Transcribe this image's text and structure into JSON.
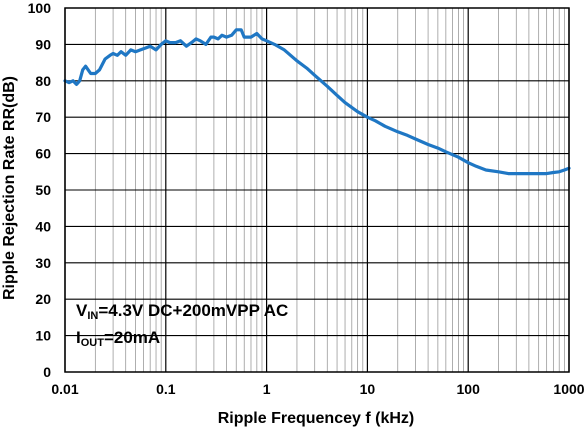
{
  "chart_data": {
    "type": "line",
    "title": "",
    "xlabel": "Ripple Frequencey f (kHz)",
    "ylabel": "Ripple Rejection Rate RR(dB)",
    "xscale": "log",
    "xlim": [
      0.01,
      1000
    ],
    "ylim": [
      0,
      100
    ],
    "x_ticks": [
      "0.01",
      "0.1",
      "1",
      "10",
      "100",
      "1000"
    ],
    "y_ticks": [
      "0",
      "10",
      "20",
      "30",
      "40",
      "50",
      "60",
      "70",
      "80",
      "90",
      "100"
    ],
    "grid": true,
    "line_color": "#1f77c4",
    "series": [
      {
        "x": [
          0.01,
          0.011,
          0.012,
          0.013,
          0.014,
          0.015,
          0.016,
          0.017,
          0.018,
          0.02,
          0.022,
          0.025,
          0.028,
          0.03,
          0.033,
          0.036,
          0.04,
          0.045,
          0.05,
          0.056,
          0.063,
          0.07,
          0.08,
          0.09,
          0.1,
          0.11,
          0.125,
          0.14,
          0.16,
          0.18,
          0.2,
          0.22,
          0.25,
          0.28,
          0.3,
          0.33,
          0.36,
          0.4,
          0.45,
          0.5,
          0.56,
          0.6,
          0.63,
          0.7,
          0.8,
          0.9,
          1.0,
          1.2,
          1.5,
          2,
          2.5,
          3,
          4,
          5,
          6,
          8,
          10,
          12,
          15,
          20,
          25,
          30,
          40,
          50,
          60,
          80,
          100,
          120,
          150,
          200,
          250,
          300,
          400,
          500,
          600,
          700,
          800,
          900,
          1000
        ],
        "y": [
          80.0,
          79.5,
          80.0,
          79.0,
          80.0,
          83.0,
          84.0,
          83.0,
          82.0,
          82.0,
          83.0,
          86.0,
          87.0,
          87.5,
          87.0,
          88.0,
          87.0,
          88.5,
          88.0,
          88.5,
          89.0,
          89.5,
          88.5,
          90.0,
          91.0,
          90.5,
          90.5,
          91.0,
          89.5,
          90.5,
          91.5,
          91.0,
          90.0,
          92.0,
          92.0,
          91.5,
          92.5,
          92.0,
          92.5,
          94.0,
          94.0,
          92.0,
          92.0,
          92.0,
          93.0,
          91.5,
          91.0,
          90.0,
          88.5,
          85.5,
          83.5,
          81.5,
          78.5,
          76.0,
          74.0,
          71.5,
          70.0,
          69.0,
          67.5,
          66.0,
          65.0,
          64.0,
          62.5,
          61.5,
          60.5,
          59.0,
          57.5,
          56.5,
          55.5,
          55.0,
          54.5,
          54.5,
          54.5,
          54.5,
          54.5,
          54.8,
          55.0,
          55.5,
          56.0
        ]
      }
    ]
  },
  "annotation": {
    "line1_main": "V",
    "line1_sub": "IN",
    "line1_rest": "=4.3V  DC+200mVPP  AC",
    "line2_main": "I",
    "line2_sub": "OUT",
    "line2_rest": "=20mA"
  }
}
